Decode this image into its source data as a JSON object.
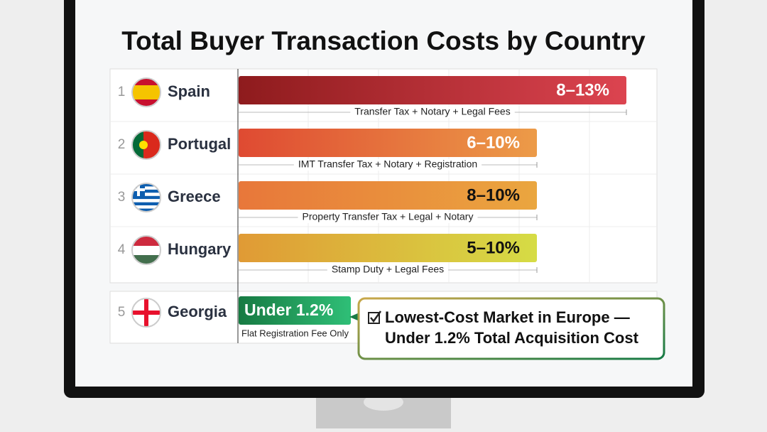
{
  "chart_data": {
    "type": "bar",
    "title": "Total Buyer Transaction Costs by Country",
    "ranks": [
      1,
      2,
      3,
      4,
      5
    ],
    "categories": [
      "Spain",
      "Portugal",
      "Greece",
      "Hungary",
      "Georgia"
    ],
    "low": [
      8,
      6,
      8,
      5,
      null
    ],
    "values": [
      13,
      10,
      10,
      10,
      1.2
    ],
    "value_labels": [
      "8–13%",
      "6–10%",
      "8–10%",
      "5–10%",
      "Under 1.2%"
    ],
    "notes": [
      "Transfer Tax + Notary + Legal Fees",
      "IMT Transfer Tax + Notary + Registration",
      "Property Transfer Tax + Legal + Notary",
      "Stamp Duty + Legal Fees",
      "Flat Registration Fee Only"
    ],
    "colors": [
      [
        "#8e1b1d",
        "#dc4450"
      ],
      [
        "#df4a32",
        "#ec9b48"
      ],
      [
        "#e8773a",
        "#eaa63f"
      ],
      [
        "#e09a35",
        "#d6dc45"
      ],
      [
        "#177a42",
        "#2fbf77"
      ]
    ],
    "label_colors": [
      "#ffffff",
      "#ffffff",
      "#111111",
      "#111111",
      "#ffffff"
    ],
    "callout": [
      "Lowest-Cost Market in Europe —",
      "Under 1.2% Total Acquisition Cost"
    ]
  }
}
